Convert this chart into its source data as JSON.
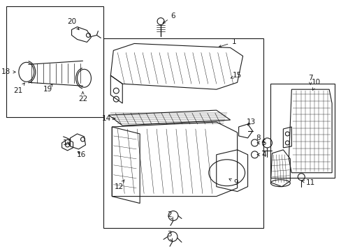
{
  "bg_color": "#ffffff",
  "line_color": "#1a1a1a",
  "fig_width": 4.89,
  "fig_height": 3.6,
  "dpi": 100,
  "font_size": 7.5
}
